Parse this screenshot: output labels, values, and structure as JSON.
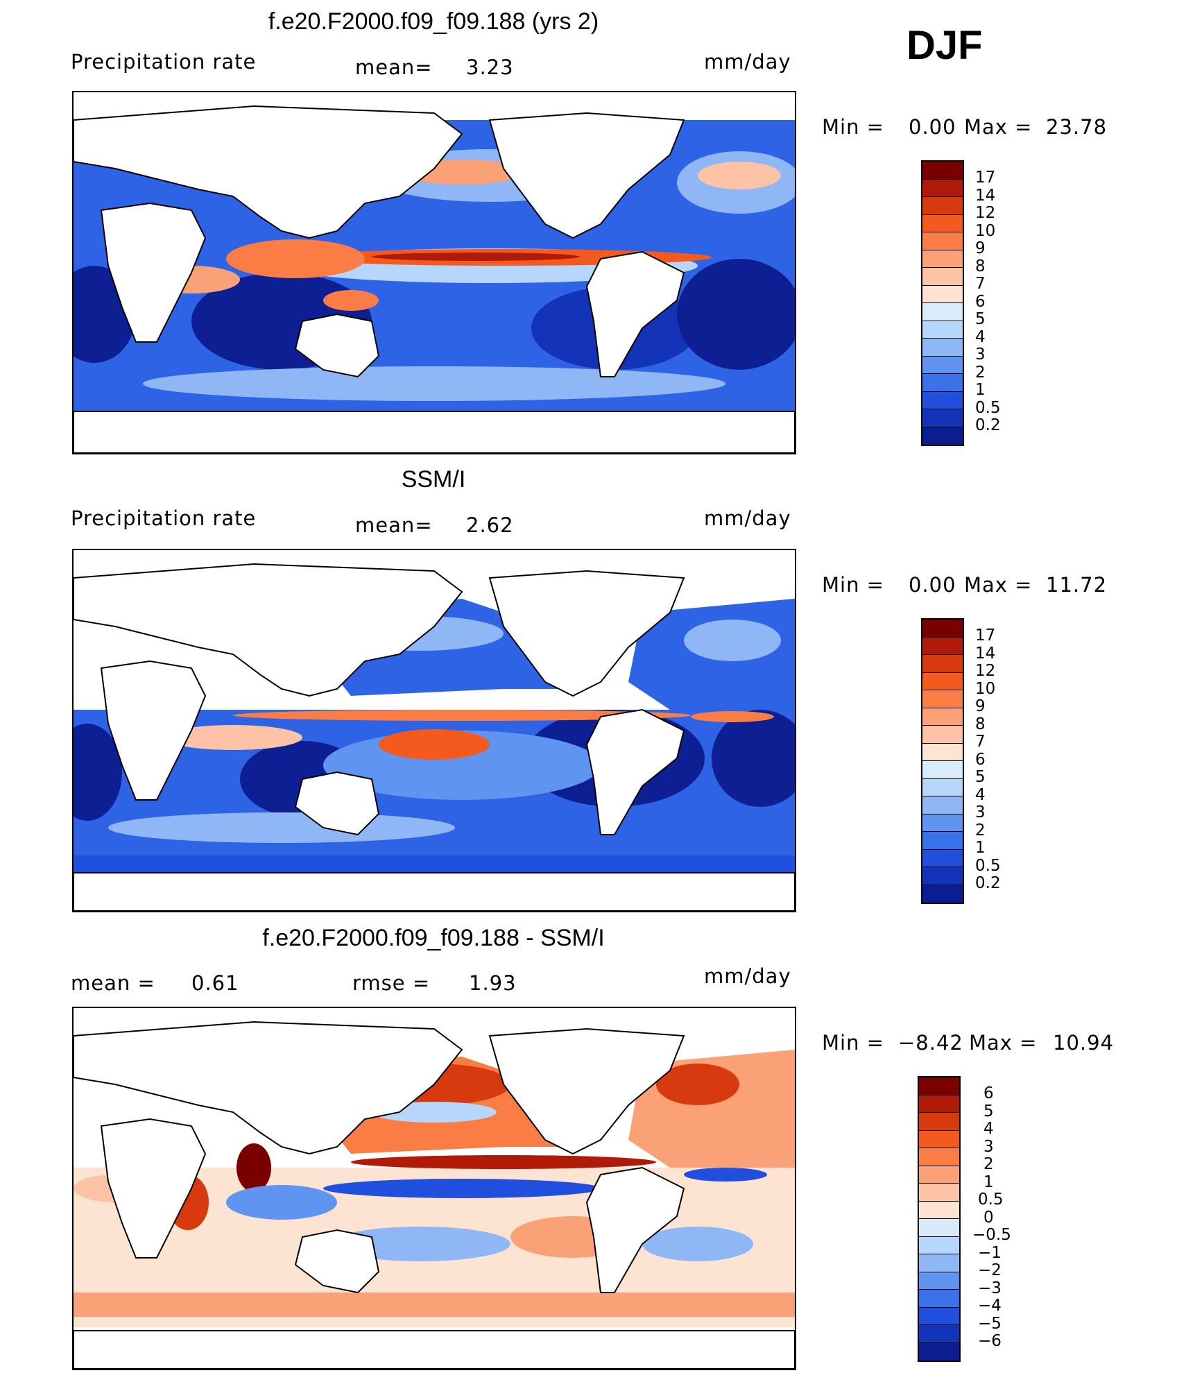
{
  "season": "DJF",
  "panels": [
    {
      "id": "model",
      "title": "f.e20.F2000.f09_f09.188 (yrs 2)",
      "left_label": "Precipitation  rate",
      "mid_label": "mean=",
      "mid_value": "3.23",
      "units": "mm/day",
      "min_label": "Min  =",
      "min_value": "0.00",
      "max_label": "Max  =",
      "max_value": "23.78",
      "colorbar": {
        "colors": [
          "#7a0000",
          "#b01a08",
          "#d83a10",
          "#f45a1e",
          "#fa7d46",
          "#fba178",
          "#fcc3a6",
          "#fde3d2",
          "#d8ecfc",
          "#b7d6fb",
          "#8fb7f6",
          "#5f94f1",
          "#3a72ea",
          "#1f4fdc",
          "#1334b8",
          "#0b1d91"
        ],
        "labels": [
          "17",
          "14",
          "12",
          "10",
          "9",
          "8",
          "7",
          "6",
          "5",
          "4",
          "3",
          "2",
          "1",
          "0.5",
          "0.2"
        ]
      }
    },
    {
      "id": "obs",
      "title": "SSM/I",
      "left_label": "Precipitation  rate",
      "mid_label": "mean=",
      "mid_value": "2.62",
      "units": "mm/day",
      "min_label": "Min  =",
      "min_value": "0.00",
      "max_label": "Max  =",
      "max_value": "11.72",
      "colorbar": {
        "colors": [
          "#7a0000",
          "#b01a08",
          "#d83a10",
          "#f45a1e",
          "#fa7d46",
          "#fba178",
          "#fcc3a6",
          "#fde3d2",
          "#d8ecfc",
          "#b7d6fb",
          "#8fb7f6",
          "#5f94f1",
          "#3a72ea",
          "#1f4fdc",
          "#1334b8",
          "#0b1d91"
        ],
        "labels": [
          "17",
          "14",
          "12",
          "10",
          "9",
          "8",
          "7",
          "6",
          "5",
          "4",
          "3",
          "2",
          "1",
          "0.5",
          "0.2"
        ]
      }
    },
    {
      "id": "diff",
      "title": "f.e20.F2000.f09_f09.188 - SSM/I",
      "left_label": "mean  =",
      "left_value": "0.61",
      "mid_label": "rmse  =",
      "mid_value": "1.93",
      "units": "mm/day",
      "min_label": "Min  =",
      "min_value": "−8.42",
      "max_label": "Max  =",
      "max_value": "10.94",
      "colorbar": {
        "colors": [
          "#7a0000",
          "#b01a08",
          "#d83a10",
          "#f45a1e",
          "#fa7d46",
          "#fba178",
          "#fcc3a6",
          "#fde3d2",
          "#dbeafb",
          "#b7d6fb",
          "#8fb7f6",
          "#5f94f1",
          "#3a72ea",
          "#1f4fdc",
          "#1334b8",
          "#0b1d91"
        ],
        "labels": [
          "6",
          "5",
          "4",
          "3",
          "2",
          "1",
          "0.5",
          "0",
          "−0.5",
          "−1",
          "−2",
          "−3",
          "−4",
          "−5",
          "−6"
        ]
      }
    }
  ]
}
